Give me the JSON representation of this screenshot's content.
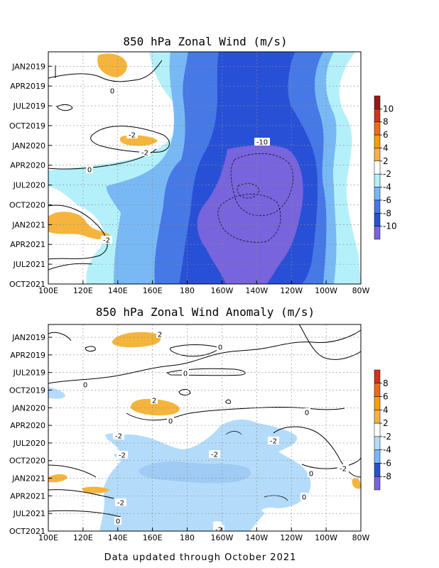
{
  "footer": "Data updated through October 2021",
  "chart_data": [
    {
      "type": "heatmap",
      "title": "850 hPa Zonal Wind (m/s)",
      "x_ticks": [
        "100E",
        "120E",
        "140E",
        "160E",
        "180",
        "160W",
        "140W",
        "120W",
        "100W",
        "80W"
      ],
      "y_ticks": [
        "JAN2019",
        "APR2019",
        "JUL2019",
        "OCT2019",
        "JAN2020",
        "APR2020",
        "JUL2020",
        "OCT2020",
        "JAN2021",
        "APR2021",
        "JUL2021",
        "OCT2021"
      ],
      "colorbar": {
        "labels": [
          "10",
          "8",
          "6",
          "4",
          "2",
          "-2",
          "-4",
          "-6",
          "-8",
          "-10"
        ],
        "colors": [
          "#a01414",
          "#d2321e",
          "#f06a14",
          "#f5a000",
          "#f5b43c",
          "#ffffff",
          "#b4f0fa",
          "#78b9f5",
          "#4678e6",
          "#2850d7",
          "#7864dc"
        ]
      },
      "contour_labels": [
        "-10",
        "-2",
        "0",
        "-2",
        "0",
        "-2"
      ],
      "grid": true,
      "color_key": {
        "purple": "#7864dc",
        "deep_blue": "#2850d7",
        "blue": "#4678e6",
        "mid_blue": "#78b9f5",
        "light_blue": "#b4f0fa",
        "orange": "#f5b43c"
      }
    },
    {
      "type": "heatmap",
      "title": "850 hPa Zonal Wind Anomaly (m/s)",
      "x_ticks": [
        "100E",
        "120E",
        "140E",
        "160E",
        "180",
        "160W",
        "140W",
        "120W",
        "100W",
        "80W"
      ],
      "y_ticks": [
        "JAN2019",
        "APR2019",
        "JUL2019",
        "OCT2019",
        "JAN2020",
        "APR2020",
        "JUL2020",
        "OCT2020",
        "JAN2021",
        "APR2021",
        "JUL2021",
        "OCT2021"
      ],
      "colorbar": {
        "labels": [
          "8",
          "6",
          "4",
          "2",
          "-2",
          "-4",
          "-6",
          "-8"
        ],
        "colors": [
          "#d2321e",
          "#f06a14",
          "#f5a000",
          "#f5b43c",
          "#ffffff",
          "#b4dcfa",
          "#78b9f5",
          "#2850d7",
          "#7864dc"
        ]
      },
      "contour_labels": [
        "2",
        "0",
        "0",
        "0",
        "2",
        "0",
        "0",
        "-2",
        "-2",
        "-2",
        "-2",
        "0",
        "0",
        "-2",
        "0",
        "-2",
        "-2"
      ],
      "grid": true,
      "color_key": {
        "light_blue": "#b4dcfa",
        "orange": "#f5b43c"
      }
    }
  ]
}
